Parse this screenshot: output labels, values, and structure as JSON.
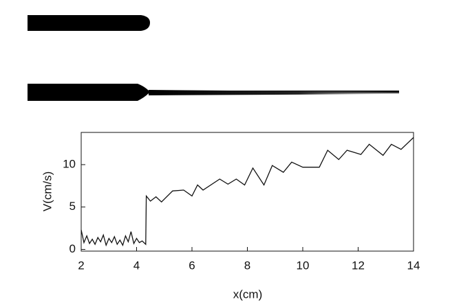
{
  "chart_data": {
    "type": "line",
    "x_label": "x(cm)",
    "y_label": "V(cm/s)",
    "color": "#111111",
    "x": [
      2.0,
      2.1,
      2.2,
      2.3,
      2.4,
      2.5,
      2.6,
      2.7,
      2.8,
      2.9,
      3.0,
      3.1,
      3.2,
      3.3,
      3.4,
      3.5,
      3.6,
      3.7,
      3.8,
      3.9,
      4.0,
      4.1,
      4.2,
      4.33,
      4.35,
      4.5,
      4.7,
      4.9,
      5.3,
      5.7,
      6.0,
      6.2,
      6.4,
      7.0,
      7.3,
      7.6,
      7.9,
      8.2,
      8.6,
      8.9,
      9.3,
      9.6,
      10.0,
      10.6,
      10.9,
      11.3,
      11.6,
      12.1,
      12.4,
      12.9,
      13.2,
      13.55,
      14.0
    ],
    "values": [
      2.3,
      0.8,
      1.6,
      0.7,
      1.2,
      0.6,
      1.4,
      0.9,
      1.7,
      0.5,
      1.3,
      0.8,
      1.5,
      0.6,
      1.1,
      0.5,
      1.6,
      0.9,
      2.1,
      0.7,
      1.3,
      0.8,
      1.0,
      0.6,
      6.3,
      5.7,
      6.2,
      5.6,
      6.9,
      7.0,
      6.3,
      7.6,
      7.0,
      8.3,
      7.7,
      8.3,
      7.6,
      9.6,
      7.6,
      9.9,
      9.1,
      10.3,
      9.7,
      9.7,
      11.7,
      10.6,
      11.7,
      11.2,
      12.4,
      11.1,
      12.4,
      11.8,
      13.2
    ],
    "xlim": [
      2,
      14
    ],
    "xticks": [
      2,
      4,
      6,
      8,
      10,
      12,
      14
    ],
    "ylim": [
      -0.2,
      13.8
    ],
    "yticks": [
      0,
      5,
      10
    ]
  }
}
